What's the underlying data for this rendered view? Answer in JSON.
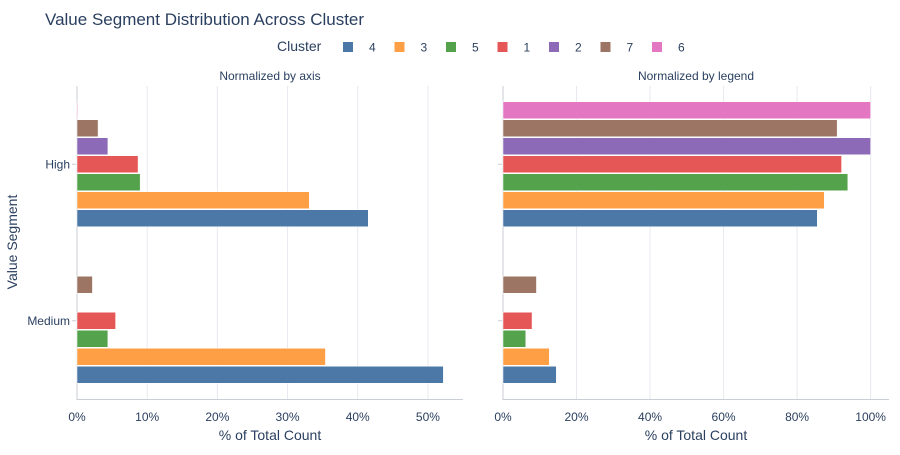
{
  "chart_data": {
    "type": "bar",
    "orientation": "horizontal",
    "title": "Value Segment Distribution Across Cluster",
    "ylabel": "Value Segment",
    "categories": [
      "High",
      "Medium"
    ],
    "legend": {
      "title": "Cluster",
      "placement": "top-center",
      "entries": [
        {
          "name": "4",
          "color": "#4c78a8"
        },
        {
          "name": "3",
          "color": "#ff9f45"
        },
        {
          "name": "5",
          "color": "#54a24b"
        },
        {
          "name": "1",
          "color": "#e45756"
        },
        {
          "name": "2",
          "color": "#8d6ab8"
        },
        {
          "name": "7",
          "color": "#9d7565"
        },
        {
          "name": "6",
          "color": "#e377c2"
        }
      ]
    },
    "panels": [
      {
        "subtitle": "Normalized by axis",
        "xlabel": "% of Total Count",
        "xlim": [
          0,
          55
        ],
        "ticks": [
          0,
          10,
          20,
          30,
          40,
          50
        ],
        "tick_labels": [
          "0%",
          "10%",
          "20%",
          "30%",
          "40%",
          "50%"
        ],
        "series": [
          {
            "name": "4",
            "values": [
              41.5,
              52.2
            ]
          },
          {
            "name": "3",
            "values": [
              33.1,
              35.4
            ]
          },
          {
            "name": "5",
            "values": [
              9.0,
              4.4
            ]
          },
          {
            "name": "1",
            "values": [
              8.7,
              5.5
            ]
          },
          {
            "name": "2",
            "values": [
              4.4,
              0
            ]
          },
          {
            "name": "7",
            "values": [
              3.0,
              2.2
            ]
          },
          {
            "name": "6",
            "values": [
              0.1,
              0
            ]
          }
        ]
      },
      {
        "subtitle": "Normalized by legend",
        "xlabel": "% of Total Count",
        "xlim": [
          0,
          105
        ],
        "ticks": [
          0,
          20,
          40,
          60,
          80,
          100
        ],
        "tick_labels": [
          "0%",
          "20%",
          "40%",
          "60%",
          "80%",
          "100%"
        ],
        "series": [
          {
            "name": "4",
            "values": [
              85.5,
              14.5
            ]
          },
          {
            "name": "3",
            "values": [
              87.4,
              12.6
            ]
          },
          {
            "name": "5",
            "values": [
              93.8,
              6.2
            ]
          },
          {
            "name": "1",
            "values": [
              92.1,
              7.9
            ]
          },
          {
            "name": "2",
            "values": [
              100,
              0
            ]
          },
          {
            "name": "7",
            "values": [
              90.9,
              9.1
            ]
          },
          {
            "name": "6",
            "values": [
              100,
              0
            ]
          }
        ]
      }
    ]
  }
}
